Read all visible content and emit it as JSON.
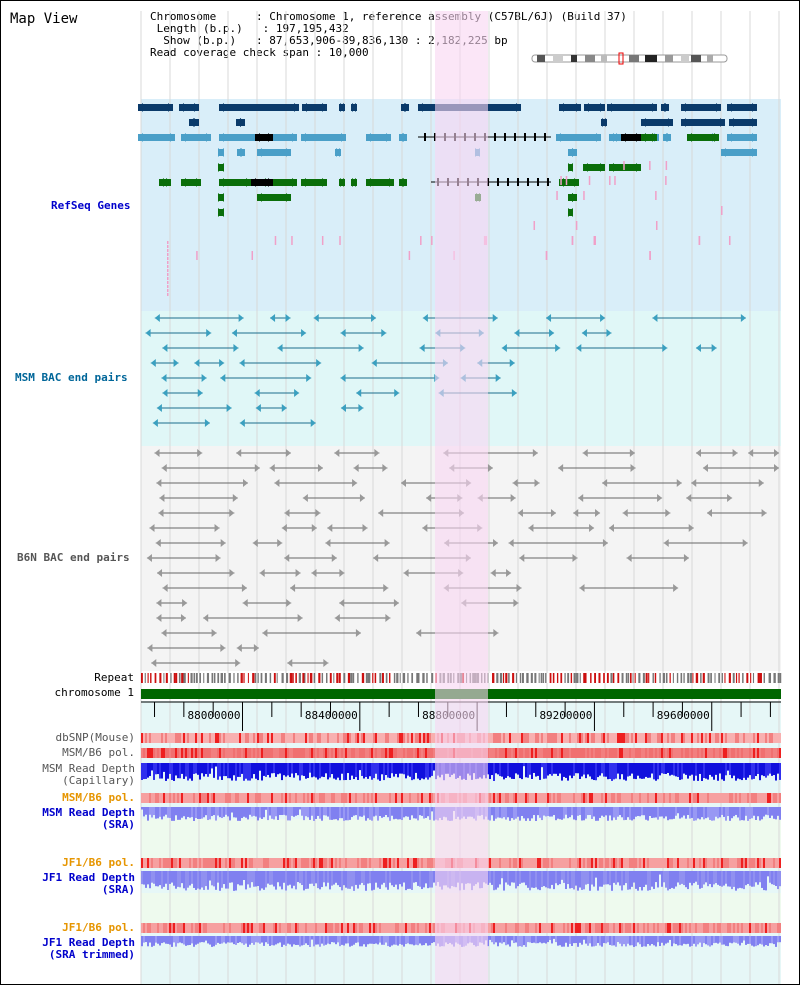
{
  "view_title": "Map View",
  "info": {
    "chromosome_label": "Chromosome",
    "chromosome_value": "Chromosome 1, reference assembly (C57BL/6J) (Build 37)",
    "length_label": "Length (b.p.)",
    "length_value": "197,195,432",
    "show_label": "Show (b.p.)",
    "show_value": "87,653,906-89,836,130 : 2,182,225 bp",
    "coverage_label": "Read coverage check span",
    "coverage_value": "10,000"
  },
  "tracks": {
    "refseq": "RefSeq Genes",
    "msm_bac": "MSM BAC end pairs",
    "b6n_bac": "B6N BAC end pairs",
    "repeat": "Repeat",
    "chromosome": "chromosome 1",
    "dbsnp": "dbSNP(Mouse)",
    "msm_b6_pol_1": "MSM/B6 pol.",
    "msm_depth_cap_1": "MSM Read Depth",
    "msm_depth_cap_2": "(Capillary)",
    "msm_b6_pol_2": "MSM/B6 pol.",
    "msm_depth_sra_1": "MSM Read Depth",
    "msm_depth_sra_2": "(SRA)",
    "jf1_pol_1": "JF1/B6 pol.",
    "jf1_depth_sra_1": "JF1 Read Depth",
    "jf1_depth_sra_2": "(SRA)",
    "jf1_pol_2": "JF1/B6 pol.",
    "jf1_depth_trim_1": "JF1 Read Depth",
    "jf1_depth_trim_2": "(SRA trimmed)"
  },
  "axis": {
    "ticks": [
      "88000000",
      "88400000",
      "88800000",
      "89200000",
      "89600000"
    ],
    "tick_values": [
      88000000,
      88400000,
      88800000,
      89200000,
      89600000
    ],
    "range": [
      87653906,
      89836130
    ]
  },
  "colors": {
    "label_blue": "#0000cc",
    "label_teal": "#006699",
    "label_gray": "#555555",
    "label_orange": "#e69500",
    "refseq_bg": "#d9eef9",
    "msm_bg": "#e0f7f7",
    "b6n_bg": "#f4f4f4",
    "highlight": "#f9d5f1",
    "gene_navy": "#0a3a6a",
    "gene_mid": "#4a9fc8",
    "gene_green": "#0a6e0a",
    "chromosome_green": "#006600",
    "depth_capillary": "#1010dd",
    "depth_sra": "#8080f0",
    "snp_red": "#ee2020"
  }
}
